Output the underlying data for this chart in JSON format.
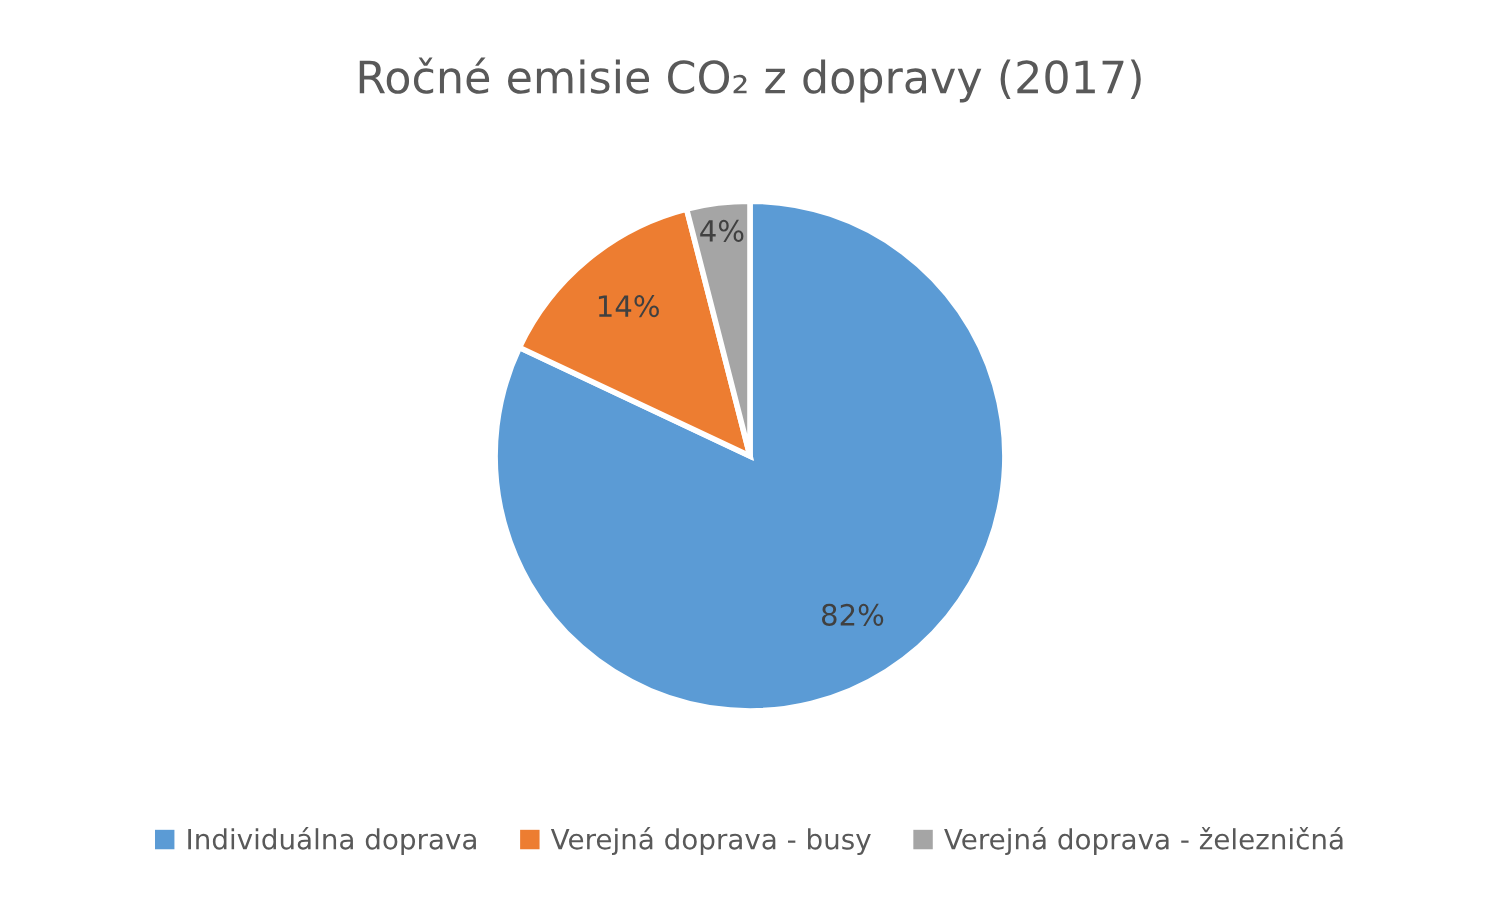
{
  "chart_data": {
    "type": "pie",
    "title": "Ročné emisie CO₂ z dopravy (2017)",
    "categories": [
      "Individuálna doprava",
      "Verejná doprava - busy",
      "Verejná doprava - železničná"
    ],
    "values": [
      82,
      14,
      4
    ],
    "colors": [
      "#5b9bd5",
      "#ed7d31",
      "#a5a5a5"
    ],
    "value_labels": [
      "82%",
      "14%",
      "4%"
    ],
    "legend": "bottom"
  }
}
